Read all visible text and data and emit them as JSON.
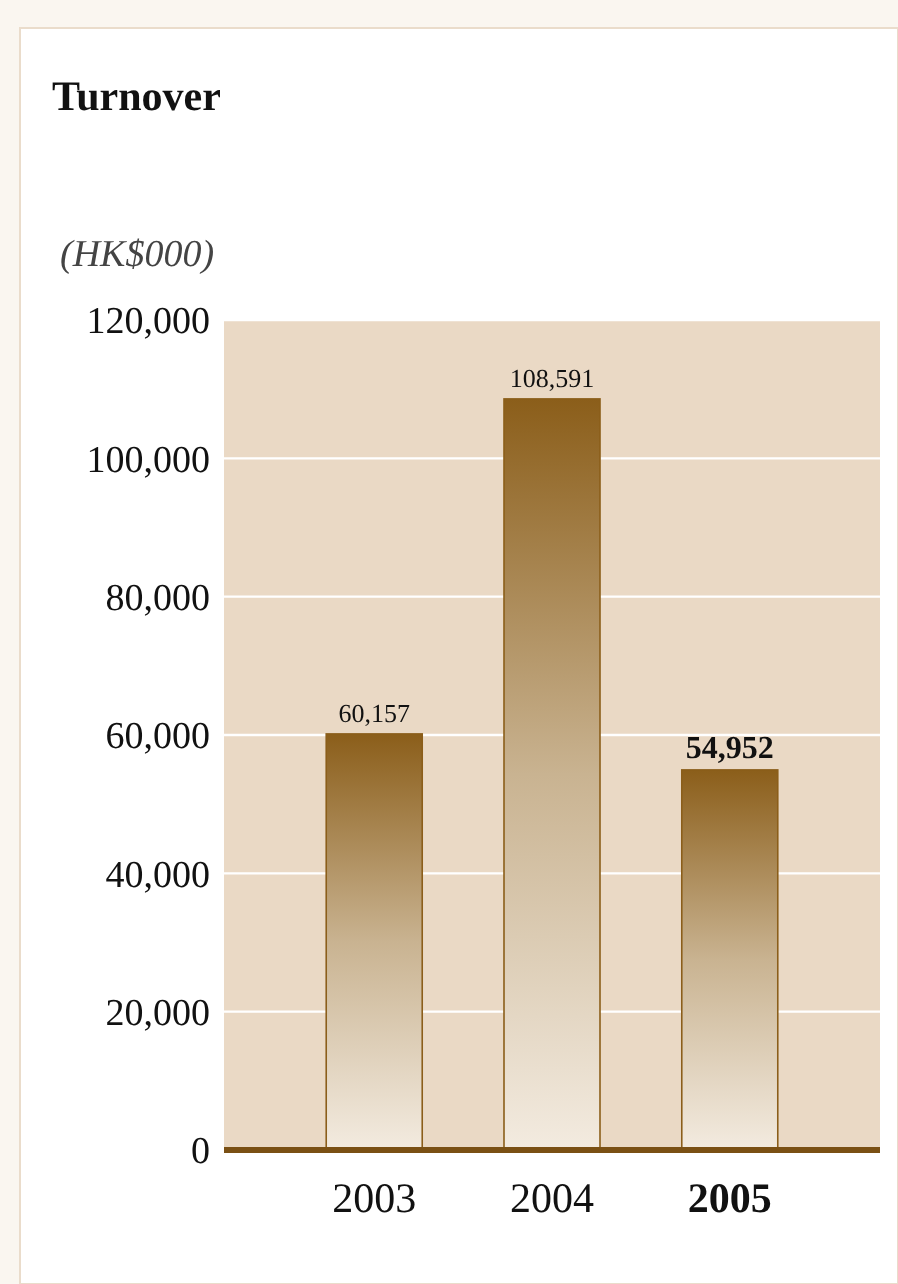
{
  "chart_data": {
    "type": "bar",
    "title": "Turnover",
    "ylabel": "(HK$000)",
    "categories": [
      "2003",
      "2004",
      "2005"
    ],
    "values": [
      60157,
      108591,
      54952
    ],
    "color": "#8b5e1a",
    "value_labels": [
      "60,157",
      "108,591",
      "54,952"
    ],
    "ylim": [
      0,
      120000
    ],
    "yticks": [
      {
        "value": 0,
        "label": "0"
      },
      {
        "value": 20000,
        "label": "20,000"
      },
      {
        "value": 40000,
        "label": "40,000"
      },
      {
        "value": 60000,
        "label": "60,000"
      },
      {
        "value": 80000,
        "label": "80,000"
      },
      {
        "value": 100000,
        "label": "100,000"
      },
      {
        "value": 120000,
        "label": "120,000"
      }
    ],
    "grid": "y"
  }
}
